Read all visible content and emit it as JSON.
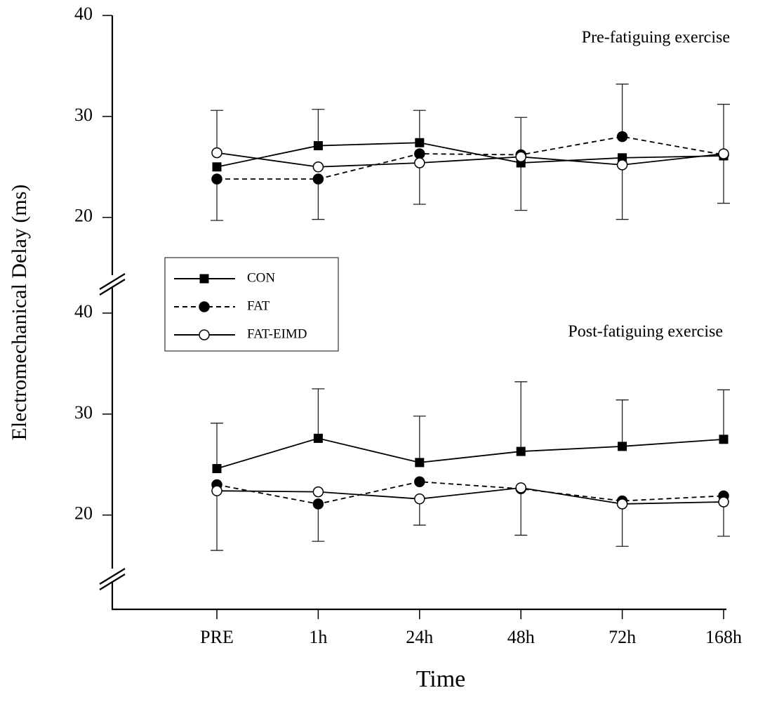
{
  "chart_data": {
    "type": "line",
    "xlabel": "Time",
    "ylabel": "Electromechanical Delay (ms)",
    "categories": [
      "PRE",
      "1h",
      "24h",
      "48h",
      "72h",
      "168h"
    ],
    "series": [
      {
        "name": "CON",
        "color": "#000000",
        "marker": "square",
        "dash": false
      },
      {
        "name": "FAT",
        "color": "#000000",
        "marker": "circle",
        "dash": true
      },
      {
        "name": "FAT-EIMD",
        "color": "#000000",
        "marker": "open-circle",
        "dash": false
      }
    ],
    "panels": [
      {
        "annotation": "Pre-fatiguing exercise",
        "ylim": [
          14,
          40
        ],
        "yticks": [
          20,
          30,
          40
        ],
        "series": [
          {
            "values": [
              25.0,
              27.1,
              27.4,
              25.4,
              25.9,
              26.1
            ],
            "err_up": [
              null,
              3.6,
              3.2,
              null,
              null,
              null
            ],
            "err_down": [
              null,
              null,
              null,
              4.7,
              null,
              4.7
            ]
          },
          {
            "values": [
              23.8,
              23.8,
              26.3,
              26.2,
              28.0,
              26.2
            ],
            "err_up": [
              null,
              null,
              null,
              null,
              5.2,
              null
            ],
            "err_down": [
              4.1,
              4.0,
              null,
              null,
              null,
              null
            ]
          },
          {
            "values": [
              26.4,
              25.0,
              25.4,
              26.0,
              25.2,
              26.3
            ],
            "err_up": [
              4.2,
              null,
              null,
              3.9,
              null,
              4.9
            ],
            "err_down": [
              null,
              null,
              4.1,
              null,
              5.4,
              null
            ]
          }
        ]
      },
      {
        "annotation": "Post-fatiguing exercise",
        "ylim": [
          14,
          40
        ],
        "yticks": [
          20,
          30,
          40
        ],
        "series": [
          {
            "values": [
              24.6,
              27.6,
              25.2,
              26.3,
              26.8,
              27.5
            ],
            "err_up": [
              4.5,
              4.9,
              4.6,
              6.9,
              4.6,
              4.9
            ],
            "err_down": [
              null,
              null,
              null,
              null,
              null,
              null
            ]
          },
          {
            "values": [
              23.0,
              21.1,
              23.3,
              22.6,
              21.4,
              21.9
            ],
            "err_up": [
              null,
              null,
              null,
              null,
              null,
              null
            ],
            "err_down": [
              null,
              3.7,
              null,
              4.6,
              null,
              4.0
            ]
          },
          {
            "values": [
              22.4,
              22.3,
              21.6,
              22.7,
              21.1,
              21.3
            ],
            "err_up": [
              null,
              null,
              null,
              null,
              null,
              null
            ],
            "err_down": [
              5.9,
              null,
              2.6,
              null,
              4.2,
              null
            ]
          }
        ]
      }
    ]
  }
}
